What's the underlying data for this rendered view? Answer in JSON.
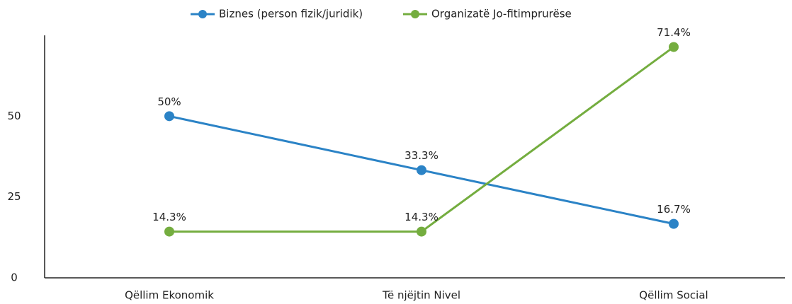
{
  "chart_data": {
    "type": "line",
    "categories": [
      "Qëllim Ekonomik",
      "Të njëjtin Nivel",
      "Qëllim Social"
    ],
    "series": [
      {
        "name": "Biznes (person fizik/juridik)",
        "color": "#2b83c6",
        "values": [
          50,
          33.3,
          16.7
        ],
        "value_labels": [
          "50%",
          "33.3%",
          "16.7%"
        ]
      },
      {
        "name": "Organizatë Jo-fitimprurëse",
        "color": "#74ad3f",
        "values": [
          14.3,
          14.3,
          71.4
        ],
        "value_labels": [
          "14.3%",
          "14.3%",
          "71.4%"
        ]
      }
    ],
    "ylim": [
      0,
      75
    ],
    "yticks": [
      0,
      25,
      50
    ],
    "grid": false,
    "legend": "top"
  }
}
